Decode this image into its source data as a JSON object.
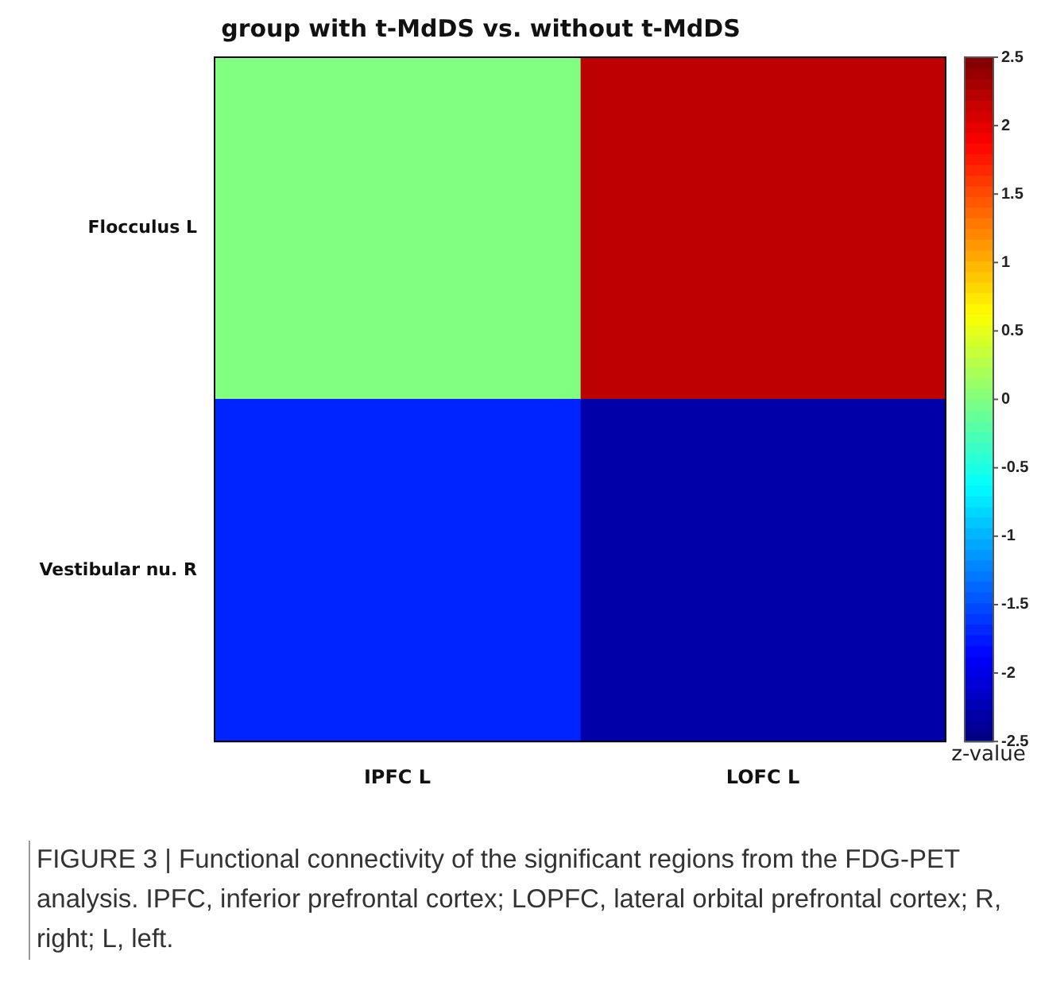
{
  "chart_data": {
    "type": "heatmap",
    "title": "group with t-MdDS vs. without t-MdDS",
    "categories": [
      "IPFC L",
      "LOFC L"
    ],
    "y_categories": [
      "Flocculus L",
      "Vestibular nu. R"
    ],
    "cells": [
      [
        0,
        2.2
      ],
      [
        -1.7,
        -2.3
      ]
    ],
    "clim": [
      -2.5,
      2.5
    ],
    "cticks": [
      -2.5,
      -2,
      -1.5,
      -1,
      -0.5,
      0,
      0.5,
      1,
      1.5,
      2,
      2.5
    ],
    "clabel": "z-value",
    "annotations": [
      "FIGURE 3 | Functional connectivity of the significant regions from the FDG-PET analysis. IPFC, inferior prefrontal cortex; LOPFC, lateral orbital prefrontal cortex; R, right; L, left."
    ]
  }
}
